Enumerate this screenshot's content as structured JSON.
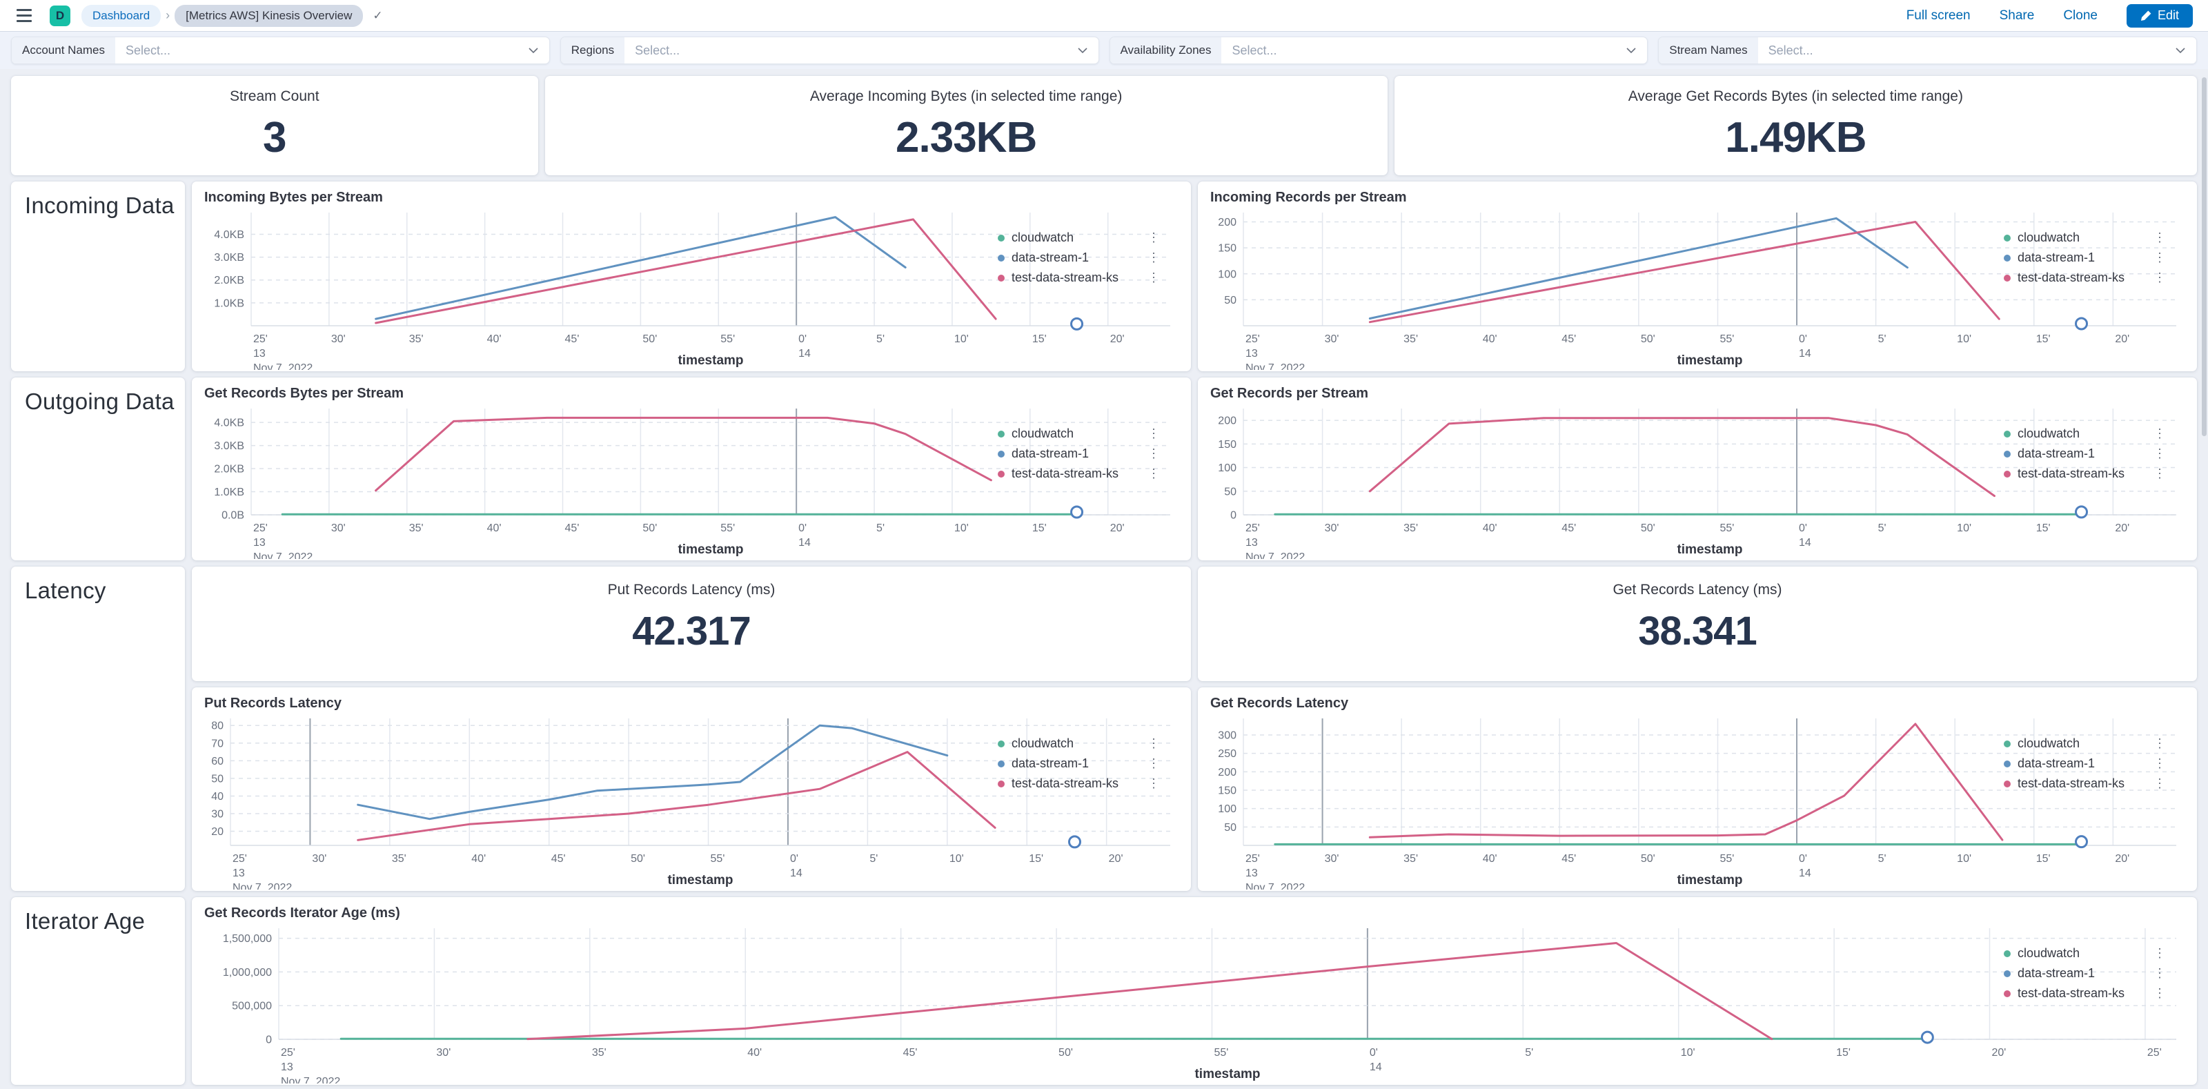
{
  "topbar": {
    "logo_letter": "D",
    "breadcrumb_dashboard": "Dashboard",
    "breadcrumb_current": "[Metrics AWS] Kinesis Overview",
    "saved_check": "✓",
    "actions": {
      "full_screen": "Full screen",
      "share": "Share",
      "clone": "Clone",
      "edit": "Edit"
    }
  },
  "filters": [
    {
      "label": "Account Names",
      "placeholder": "Select..."
    },
    {
      "label": "Regions",
      "placeholder": "Select..."
    },
    {
      "label": "Availability Zones",
      "placeholder": "Select..."
    },
    {
      "label": "Stream Names",
      "placeholder": "Select..."
    }
  ],
  "metrics": [
    {
      "label": "Stream Count",
      "value": "3"
    },
    {
      "label": "Average Incoming Bytes (in selected time range)",
      "value": "2.33KB"
    },
    {
      "label": "Average Get Records Bytes (in selected time range)",
      "value": "1.49KB"
    }
  ],
  "latency_metrics": [
    {
      "label": "Put Records Latency (ms)",
      "value": "42.317"
    },
    {
      "label": "Get Records Latency (ms)",
      "value": "38.341"
    }
  ],
  "sections": [
    {
      "title": "Incoming Data"
    },
    {
      "title": "Outgoing Data"
    },
    {
      "title": "Latency"
    },
    {
      "title": "Iterator Age"
    }
  ],
  "colors": {
    "cloudwatch": "#54B399",
    "data_stream_1": "#6092C0",
    "test_data_stream_ks": "#D36086",
    "end_marker": "#4E7FBE",
    "link": "#006BB4",
    "edit_button": "#0071C2"
  },
  "chart_data": [
    {
      "type": "line",
      "title": "Incoming Bytes per Stream",
      "xlabel": "timestamp",
      "x_domain": [
        25,
        84
      ],
      "x_ticks": [
        25,
        30,
        35,
        40,
        45,
        50,
        55,
        60,
        65,
        70,
        75,
        80
      ],
      "first_tick_hour": "13",
      "first_tick_date": "Nov 7, 2022",
      "hour_label": "14",
      "dark_gridline_at_30": false,
      "y_domain": [
        0,
        4.95
      ],
      "y_ticks": [
        [
          1,
          "1.0KB"
        ],
        [
          2,
          "2.0KB"
        ],
        [
          3,
          "3.0KB"
        ],
        [
          4,
          "4.0KB"
        ]
      ],
      "series": [
        {
          "name": "cloudwatch",
          "color": "#54B399",
          "points": []
        },
        {
          "name": "data-stream-1",
          "color": "#6092C0",
          "points": [
            [
              33,
              0.3
            ],
            [
              62.5,
              4.75
            ],
            [
              67,
              2.55
            ]
          ]
        },
        {
          "name": "test-data-stream-ks",
          "color": "#D36086",
          "points": [
            [
              33,
              0.12
            ],
            [
              67.5,
              4.65
            ],
            [
              72.8,
              0.3
            ]
          ]
        }
      ],
      "end_marker": [
        78,
        0.08
      ]
    },
    {
      "type": "line",
      "title": "Incoming Records per Stream",
      "xlabel": "timestamp",
      "x_domain": [
        25,
        84
      ],
      "x_ticks": [
        25,
        30,
        35,
        40,
        45,
        50,
        55,
        60,
        65,
        70,
        75,
        80
      ],
      "first_tick_hour": "13",
      "first_tick_date": "Nov 7, 2022",
      "hour_label": "14",
      "dark_gridline_at_30": false,
      "y_domain": [
        0,
        218
      ],
      "y_ticks": [
        [
          50,
          "50"
        ],
        [
          100,
          "100"
        ],
        [
          150,
          "150"
        ],
        [
          200,
          "200"
        ]
      ],
      "series": [
        {
          "name": "cloudwatch",
          "color": "#54B399",
          "points": []
        },
        {
          "name": "data-stream-1",
          "color": "#6092C0",
          "points": [
            [
              33,
              14
            ],
            [
              62.5,
              207
            ],
            [
              67,
              112
            ]
          ]
        },
        {
          "name": "test-data-stream-ks",
          "color": "#D36086",
          "points": [
            [
              33,
              7
            ],
            [
              67.5,
              200
            ],
            [
              72.8,
              13
            ]
          ]
        }
      ],
      "end_marker": [
        78,
        4
      ]
    },
    {
      "type": "line",
      "title": "Get Records Bytes per Stream",
      "xlabel": "timestamp",
      "x_domain": [
        25,
        84
      ],
      "x_ticks": [
        25,
        30,
        35,
        40,
        45,
        50,
        55,
        60,
        65,
        70,
        75,
        80
      ],
      "first_tick_hour": "13",
      "first_tick_date": "Nov 7, 2022",
      "hour_label": "14",
      "dark_gridline_at_30": false,
      "y_domain": [
        0,
        4.6
      ],
      "y_ticks": [
        [
          0,
          "0.0B"
        ],
        [
          1,
          "1.0KB"
        ],
        [
          2,
          "2.0KB"
        ],
        [
          3,
          "3.0KB"
        ],
        [
          4,
          "4.0KB"
        ]
      ],
      "series": [
        {
          "name": "cloudwatch",
          "color": "#54B399",
          "points": [
            [
              27,
              0.02
            ],
            [
              78,
              0.02
            ]
          ]
        },
        {
          "name": "data-stream-1",
          "color": "#6092C0",
          "points": []
        },
        {
          "name": "test-data-stream-ks",
          "color": "#D36086",
          "points": [
            [
              33,
              1.05
            ],
            [
              38,
              4.05
            ],
            [
              44,
              4.2
            ],
            [
              62,
              4.2
            ],
            [
              65,
              3.95
            ],
            [
              67,
              3.5
            ],
            [
              72.5,
              1.5
            ]
          ]
        }
      ],
      "end_marker": [
        78,
        0.12
      ]
    },
    {
      "type": "line",
      "title": "Get Records per Stream",
      "xlabel": "timestamp",
      "x_domain": [
        25,
        84
      ],
      "x_ticks": [
        25,
        30,
        35,
        40,
        45,
        50,
        55,
        60,
        65,
        70,
        75,
        80
      ],
      "first_tick_hour": "13",
      "first_tick_date": "Nov 7, 2022",
      "hour_label": "14",
      "dark_gridline_at_30": false,
      "y_domain": [
        0,
        225
      ],
      "y_ticks": [
        [
          0,
          "0"
        ],
        [
          50,
          "50"
        ],
        [
          100,
          "100"
        ],
        [
          150,
          "150"
        ],
        [
          200,
          "200"
        ]
      ],
      "series": [
        {
          "name": "cloudwatch",
          "color": "#54B399",
          "points": [
            [
              27,
              1
            ],
            [
              78,
              1
            ]
          ]
        },
        {
          "name": "data-stream-1",
          "color": "#6092C0",
          "points": []
        },
        {
          "name": "test-data-stream-ks",
          "color": "#D36086",
          "points": [
            [
              33,
              50
            ],
            [
              38,
              193
            ],
            [
              44,
              205
            ],
            [
              62,
              205
            ],
            [
              65,
              190
            ],
            [
              67,
              170
            ],
            [
              72.5,
              40
            ]
          ]
        }
      ],
      "end_marker": [
        78,
        6
      ]
    },
    {
      "type": "line",
      "title": "Put Records Latency",
      "xlabel": "timestamp",
      "x_domain": [
        25,
        84
      ],
      "x_ticks": [
        25,
        30,
        35,
        40,
        45,
        50,
        55,
        60,
        65,
        70,
        75,
        80
      ],
      "first_tick_hour": "13",
      "first_tick_date": "Nov 7, 2022",
      "hour_label": "14",
      "dark_gridline_at_30": true,
      "y_domain": [
        12,
        84
      ],
      "y_ticks": [
        [
          20,
          "20"
        ],
        [
          30,
          "30"
        ],
        [
          40,
          "40"
        ],
        [
          50,
          "50"
        ],
        [
          60,
          "60"
        ],
        [
          70,
          "70"
        ],
        [
          80,
          "80"
        ]
      ],
      "series": [
        {
          "name": "cloudwatch",
          "color": "#54B399",
          "points": []
        },
        {
          "name": "data-stream-1",
          "color": "#6092C0",
          "points": [
            [
              33,
              35
            ],
            [
              37.5,
              27
            ],
            [
              40,
              31
            ],
            [
              45,
              38
            ],
            [
              48,
              43
            ],
            [
              52,
              45
            ],
            [
              55,
              46.5
            ],
            [
              57,
              48
            ],
            [
              62,
              80
            ],
            [
              64,
              78.5
            ],
            [
              70,
              63
            ]
          ]
        },
        {
          "name": "test-data-stream-ks",
          "color": "#D36086",
          "points": [
            [
              33,
              15
            ],
            [
              40,
              24
            ],
            [
              45,
              27
            ],
            [
              50,
              30
            ],
            [
              55,
              35
            ],
            [
              62,
              44
            ],
            [
              67.5,
              65
            ],
            [
              73,
              22
            ]
          ]
        }
      ],
      "end_marker": [
        78,
        14
      ]
    },
    {
      "type": "line",
      "title": "Get Records Latency",
      "xlabel": "timestamp",
      "x_domain": [
        25,
        84
      ],
      "x_ticks": [
        25,
        30,
        35,
        40,
        45,
        50,
        55,
        60,
        65,
        70,
        75,
        80
      ],
      "first_tick_hour": "13",
      "first_tick_date": "Nov 7, 2022",
      "hour_label": "14",
      "dark_gridline_at_30": true,
      "y_domain": [
        0,
        345
      ],
      "y_ticks": [
        [
          50,
          "50"
        ],
        [
          100,
          "100"
        ],
        [
          150,
          "150"
        ],
        [
          200,
          "200"
        ],
        [
          250,
          "250"
        ],
        [
          300,
          "300"
        ]
      ],
      "series": [
        {
          "name": "cloudwatch",
          "color": "#54B399",
          "points": [
            [
              27,
              3
            ],
            [
              78,
              3
            ]
          ]
        },
        {
          "name": "data-stream-1",
          "color": "#6092C0",
          "points": []
        },
        {
          "name": "test-data-stream-ks",
          "color": "#D36086",
          "points": [
            [
              33,
              22
            ],
            [
              38,
              30
            ],
            [
              45,
              26
            ],
            [
              55,
              27
            ],
            [
              58,
              30
            ],
            [
              60,
              68
            ],
            [
              63,
              135
            ],
            [
              67.5,
              330
            ],
            [
              73,
              15
            ]
          ]
        }
      ],
      "end_marker": [
        78,
        10
      ]
    },
    {
      "type": "line",
      "title": "Get Records Iterator Age (ms)",
      "xlabel": "timestamp",
      "x_domain": [
        25,
        86
      ],
      "x_ticks": [
        25,
        30,
        35,
        40,
        45,
        50,
        55,
        60,
        65,
        70,
        75,
        80,
        85
      ],
      "first_tick_hour": "13",
      "first_tick_date": "Nov 7, 2022",
      "hour_label": "14",
      "dark_gridline_at_30": false,
      "y_domain": [
        0,
        1650000
      ],
      "y_ticks": [
        [
          0,
          "0"
        ],
        [
          500000,
          "500,000"
        ],
        [
          1000000,
          "1,000,000"
        ],
        [
          1500000,
          "1,500,000"
        ]
      ],
      "series": [
        {
          "name": "cloudwatch",
          "color": "#54B399",
          "points": [
            [
              27,
              8000
            ],
            [
              78,
              8000
            ]
          ]
        },
        {
          "name": "data-stream-1",
          "color": "#6092C0",
          "points": []
        },
        {
          "name": "test-data-stream-ks",
          "color": "#D36086",
          "points": [
            [
              33,
              4000
            ],
            [
              40,
              160000
            ],
            [
              45,
              390000
            ],
            [
              50,
              620000
            ],
            [
              55,
              850000
            ],
            [
              60,
              1080000
            ],
            [
              68,
              1430000
            ],
            [
              73,
              4000
            ]
          ]
        }
      ],
      "end_marker": [
        78,
        30000
      ]
    }
  ]
}
